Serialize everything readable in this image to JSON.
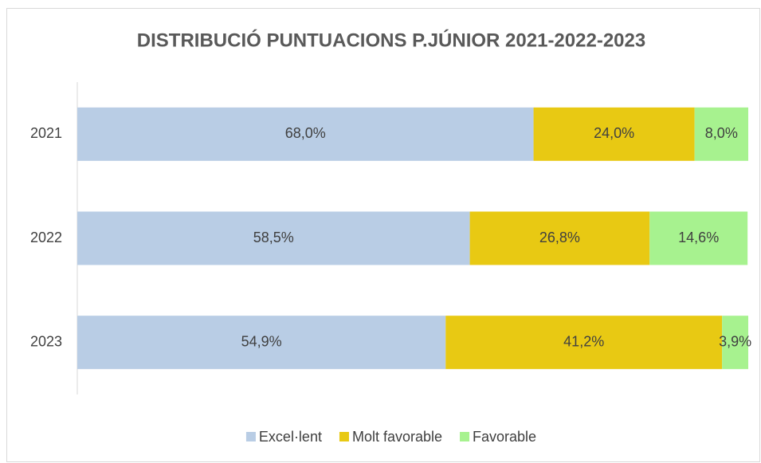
{
  "chart_data": {
    "type": "stacked-barh",
    "title": "DISTRIBUCIÓ PUNTUACIONS P.JÚNIOR 2021-2022-2023",
    "categories": [
      "2021",
      "2022",
      "2023"
    ],
    "xlim": [
      0,
      100
    ],
    "legend": "bottom",
    "series": [
      {
        "name": "Excel·lent",
        "color": "#b9cde5",
        "values": [
          68.0,
          58.5,
          54.9
        ],
        "value_labels": [
          "68,0%",
          "58,5%",
          "54,9%"
        ]
      },
      {
        "name": "Molt favorable",
        "color": "#e8c913",
        "values": [
          24.0,
          26.8,
          41.2
        ],
        "value_labels": [
          "24,0%",
          "26,8%",
          "41,2%"
        ]
      },
      {
        "name": "Favorable",
        "color": "#a7f28f",
        "values": [
          8.0,
          14.6,
          3.9
        ],
        "value_labels": [
          "8,0%",
          "14,6%",
          "3,9%"
        ]
      }
    ]
  }
}
